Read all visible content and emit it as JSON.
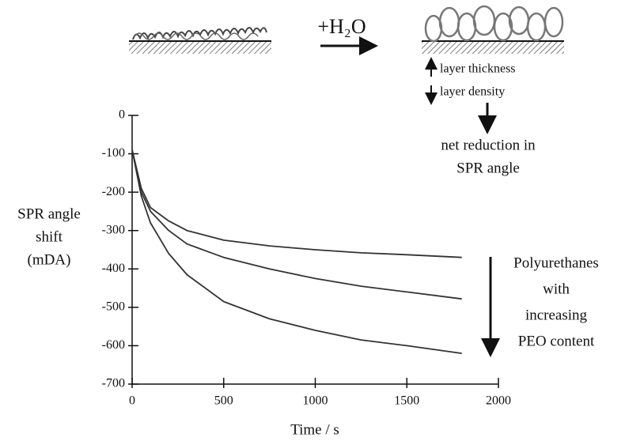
{
  "chart_data": {
    "type": "line",
    "x_label": "Time / s",
    "y_label": [
      "SPR angle",
      "shift",
      "(mDA)"
    ],
    "annotations": {
      "reagent": "+H₂O",
      "thickness": "layer thickness",
      "density": "layer density",
      "net_change": [
        "net reduction in",
        "SPR angle"
      ],
      "trend": [
        "Polyurethanes",
        "with",
        "increasing",
        "PEO content"
      ]
    },
    "x": [
      0,
      50,
      100,
      200,
      300,
      500,
      750,
      1000,
      1250,
      1500,
      1800
    ],
    "series": [
      {
        "color": "#333333",
        "values": [
          -90,
          -190,
          -240,
          -275,
          -300,
          -325,
          -340,
          -350,
          -358,
          -363,
          -370
        ]
      },
      {
        "color": "#333333",
        "values": [
          -90,
          -200,
          -250,
          -300,
          -335,
          -370,
          -400,
          -425,
          -445,
          -460,
          -478
        ]
      },
      {
        "color": "#333333",
        "values": [
          -90,
          -210,
          -280,
          -360,
          -415,
          -485,
          -530,
          -560,
          -585,
          -600,
          -620
        ]
      }
    ],
    "xlim": [
      0,
      2000
    ],
    "xticks": [
      0,
      500,
      1000,
      1500,
      2000
    ],
    "ylim": [
      -700,
      0
    ],
    "yticks": [
      0,
      -100,
      -200,
      -300,
      -400,
      -500,
      -600,
      -700
    ]
  }
}
